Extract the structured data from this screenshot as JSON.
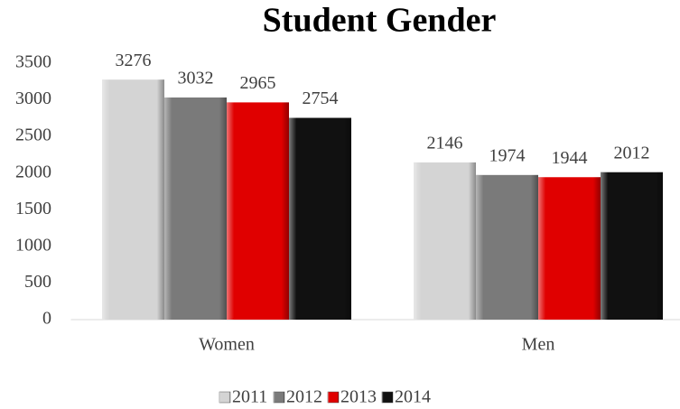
{
  "chart_data": {
    "type": "bar",
    "title": "Student Gender",
    "categories": [
      "Women",
      "Men"
    ],
    "series": [
      {
        "name": "2011",
        "color": "#d4d4d4",
        "values": [
          3276,
          2146
        ]
      },
      {
        "name": "2012",
        "color": "#7a7a7a",
        "values": [
          3032,
          1974
        ]
      },
      {
        "name": "2013",
        "color": "#e00000",
        "values": [
          2965,
          1944
        ]
      },
      {
        "name": "2014",
        "color": "#111111",
        "values": [
          2754,
          2012
        ]
      }
    ],
    "ylim": [
      0,
      3500
    ],
    "yticks": [
      0,
      500,
      1000,
      1500,
      2000,
      2500,
      3000,
      3500
    ],
    "grid": false,
    "legend": "bottom"
  }
}
